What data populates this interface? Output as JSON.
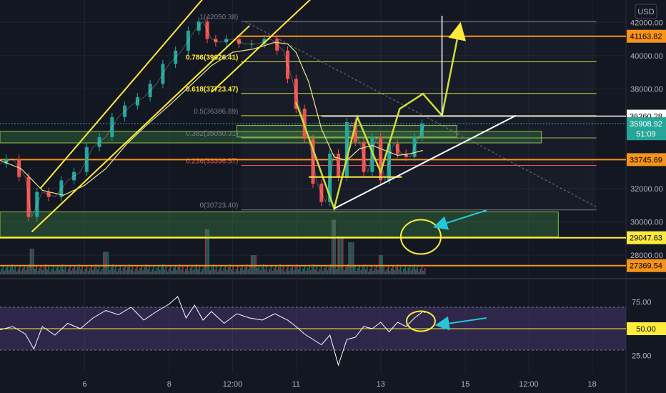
{
  "chart_data": {
    "type": "candlestick",
    "currency_label": "USD",
    "price_axis": {
      "ylim": [
        26800,
        43000
      ],
      "ticks": [
        {
          "value": 42000,
          "label": "42000.00"
        },
        {
          "value": 40000,
          "label": "40000.00"
        },
        {
          "value": 38000,
          "label": "38000.00"
        },
        {
          "value": 32000,
          "label": "32000.00"
        },
        {
          "value": 30000,
          "label": "30000.00"
        },
        {
          "value": 28000,
          "label": "28000.00"
        }
      ]
    },
    "price_tags": [
      {
        "value": 41163.82,
        "label": "41163.82",
        "color": "#f7931a",
        "text_color": "#000000"
      },
      {
        "value": 36360.28,
        "label": "36360.28",
        "color": "#ffffff",
        "text_color": "#000000"
      },
      {
        "value": 35908.92,
        "label": "35908.92",
        "color": "#26a69a",
        "text_color": "#ffffff"
      },
      {
        "value": 35300,
        "label": "51:09",
        "color": "#26a69a",
        "text_color": "#ffffff"
      },
      {
        "value": 33745.69,
        "label": "33745.69",
        "color": "#f7931a",
        "text_color": "#000000"
      },
      {
        "value": 29047.63,
        "label": "29047.63",
        "color": "#ffeb3b",
        "text_color": "#000000"
      },
      {
        "value": 27369.54,
        "label": "27369.54",
        "color": "#f7931a",
        "text_color": "#000000"
      }
    ],
    "fibonacci": [
      {
        "ratio": "1",
        "value": 42050.38,
        "label": "1(42050.38)"
      },
      {
        "ratio": "0.786",
        "value": 39626.41,
        "label": "0.786(39626.41)"
      },
      {
        "ratio": "0.618",
        "value": 37723.47,
        "label": "0.618(37723.47)"
      },
      {
        "ratio": "0.5",
        "value": 36386.89,
        "label": "0.5(36386.89)"
      },
      {
        "ratio": "0.382",
        "value": 35050.31,
        "label": "0.382(35050.31)"
      },
      {
        "ratio": "0.236",
        "value": 33396.57,
        "label": "0.236(33396.57)"
      },
      {
        "ratio": "0",
        "value": 30723.4,
        "label": "0(30723.40)"
      }
    ],
    "time_axis": {
      "xlim": [
        4.0,
        18.8
      ],
      "ticks": [
        {
          "value": 6,
          "label": "6"
        },
        {
          "value": 8,
          "label": "8"
        },
        {
          "value": 9.5,
          "label": "12:00"
        },
        {
          "value": 11,
          "label": "11"
        },
        {
          "value": 13,
          "label": "13"
        },
        {
          "value": 15,
          "label": "15"
        },
        {
          "value": 16.5,
          "label": "12:00"
        },
        {
          "value": 18,
          "label": "18"
        }
      ]
    },
    "price_series": {
      "x": [
        4.0,
        4.3,
        4.6,
        4.75,
        5.0,
        5.3,
        5.6,
        5.9,
        6.2,
        6.5,
        6.8,
        7.1,
        7.4,
        7.7,
        8.0,
        8.3,
        8.6,
        8.8,
        9.0,
        9.2,
        9.5,
        9.8,
        10.1,
        10.4,
        10.7,
        10.9,
        11.1,
        11.3,
        11.5,
        11.7,
        11.9,
        12.1,
        12.3,
        12.5,
        12.7,
        12.9,
        13.1,
        13.3,
        13.5,
        13.7,
        13.9,
        14.05
      ],
      "y": [
        33500,
        33800,
        32700,
        30300,
        31800,
        31500,
        32500,
        33000,
        34500,
        35100,
        36300,
        37000,
        37500,
        38300,
        39500,
        40300,
        41500,
        42050,
        41000,
        40800,
        41000,
        40700,
        40700,
        41000,
        40300,
        38600,
        36800,
        35000,
        32300,
        31200,
        34100,
        32700,
        36000,
        34800,
        33000,
        35100,
        32500,
        34700,
        34100,
        33900,
        35100,
        35908.92
      ]
    },
    "ma_series": {
      "x": [
        4.0,
        4.5,
        5.0,
        5.5,
        6.0,
        6.5,
        7.0,
        7.5,
        8.0,
        8.5,
        9.0,
        9.5,
        10.0,
        10.5,
        10.8,
        11.0,
        11.3,
        11.6,
        11.9,
        12.2,
        12.5,
        12.8,
        13.1,
        13.4,
        13.7,
        14.0
      ],
      "y": [
        33700,
        33200,
        31900,
        31600,
        32200,
        33200,
        34700,
        35900,
        37000,
        38200,
        39400,
        40200,
        40400,
        40800,
        40700,
        40200,
        38400,
        35600,
        33900,
        33700,
        34400,
        34600,
        34300,
        34000,
        34100,
        34300
      ]
    },
    "volume_series": [
      {
        "x": 4.75,
        "v": 0.4
      },
      {
        "x": 6.5,
        "v": 0.35
      },
      {
        "x": 8.9,
        "v": 0.7
      },
      {
        "x": 10.0,
        "v": 0.3
      },
      {
        "x": 11.9,
        "v": 0.85
      },
      {
        "x": 12.05,
        "v": 0.6
      },
      {
        "x": 12.3,
        "v": 0.5
      },
      {
        "x": 13.0,
        "v": 0.3
      }
    ],
    "rsi": {
      "ylim": [
        10,
        90
      ],
      "ticks": [
        {
          "value": 75,
          "label": "75.00"
        },
        {
          "value": 25,
          "label": "25.00"
        }
      ],
      "band": [
        30,
        70
      ],
      "midline": {
        "value": 50,
        "label": "50.00"
      },
      "x": [
        4.0,
        4.3,
        4.6,
        4.8,
        5.0,
        5.3,
        5.6,
        5.9,
        6.2,
        6.5,
        6.8,
        7.1,
        7.4,
        7.7,
        8.0,
        8.2,
        8.4,
        8.6,
        8.8,
        9.0,
        9.3,
        9.6,
        9.9,
        10.2,
        10.5,
        10.8,
        11.0,
        11.2,
        11.4,
        11.6,
        11.8,
        12.0,
        12.2,
        12.4,
        12.6,
        12.8,
        13.0,
        13.2,
        13.4,
        13.6,
        13.8,
        14.0,
        14.05
      ],
      "y": [
        49,
        52,
        45,
        31,
        52,
        44,
        55,
        50,
        60,
        67,
        63,
        70,
        58,
        66,
        73,
        80,
        60,
        72,
        58,
        66,
        55,
        64,
        60,
        58,
        64,
        58,
        52,
        45,
        40,
        35,
        44,
        16,
        40,
        42,
        52,
        50,
        56,
        47,
        56,
        52,
        60,
        66,
        65
      ]
    }
  }
}
